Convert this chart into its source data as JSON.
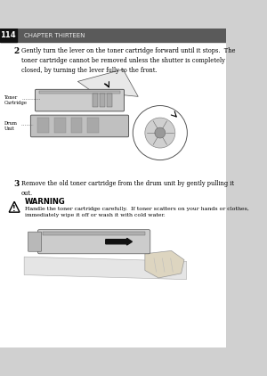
{
  "page_number": "114",
  "chapter_title": "CHAPTER THIRTEEN",
  "header_bg": "#5a5a5a",
  "page_bg": "#d0d0d0",
  "step2_number": "2",
  "step2_text": "Gently turn the lever on the toner cartridge forward until it stops.  The\ntoner cartridge cannot be removed unless the shutter is completely\nclosed, by turning the lever fully to the front.",
  "label_toner": "Toner\nCartridge",
  "label_drum": "Drum\nUnit",
  "step3_number": "3",
  "step3_text": "Remove the old toner cartridge from the drum unit by gently pulling it\nout.",
  "warning_title": "WARNING",
  "warning_text": "Handle the toner cartridge carefully.  If toner scatters on your hands or clothes,\nimmediately wipe it off or wash it with cold water."
}
